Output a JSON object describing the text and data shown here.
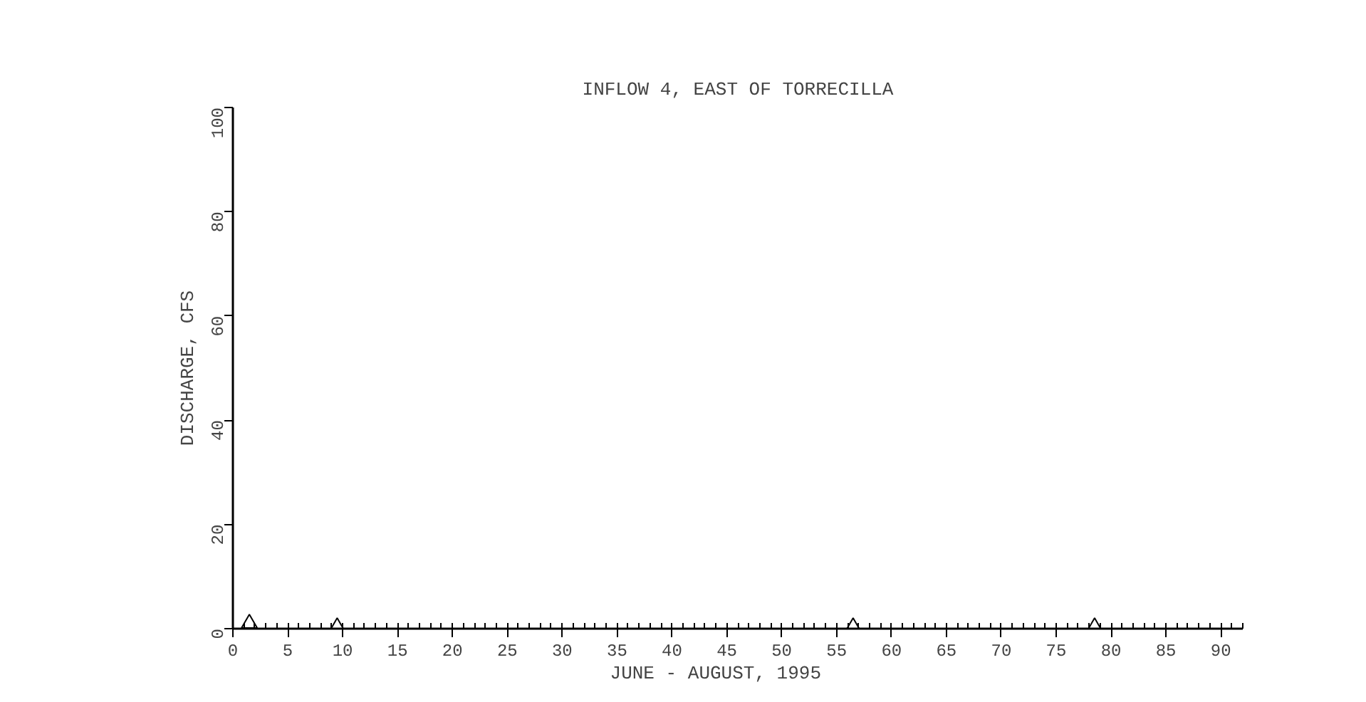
{
  "chart_data": {
    "type": "scatter",
    "title": "INFLOW 4, EAST OF TORRECILLA",
    "xlabel": "JUNE   -   AUGUST, 1995",
    "ylabel": "DISCHARGE, CFS",
    "x": [
      1.5,
      9.5,
      56.5,
      78.5
    ],
    "series": [
      {
        "color": "#000000",
        "values": [
          1.0,
          0.3,
          0.3,
          0.3
        ]
      }
    ],
    "marker": "triangle",
    "xlim": [
      0,
      92
    ],
    "xticks": [
      0,
      5,
      10,
      15,
      20,
      25,
      30,
      35,
      40,
      45,
      50,
      55,
      60,
      65,
      70,
      75,
      80,
      85,
      90
    ],
    "ylim": [
      0,
      100
    ],
    "yticks": [
      0,
      20,
      40,
      60,
      80,
      100
    ],
    "grid": false
  }
}
